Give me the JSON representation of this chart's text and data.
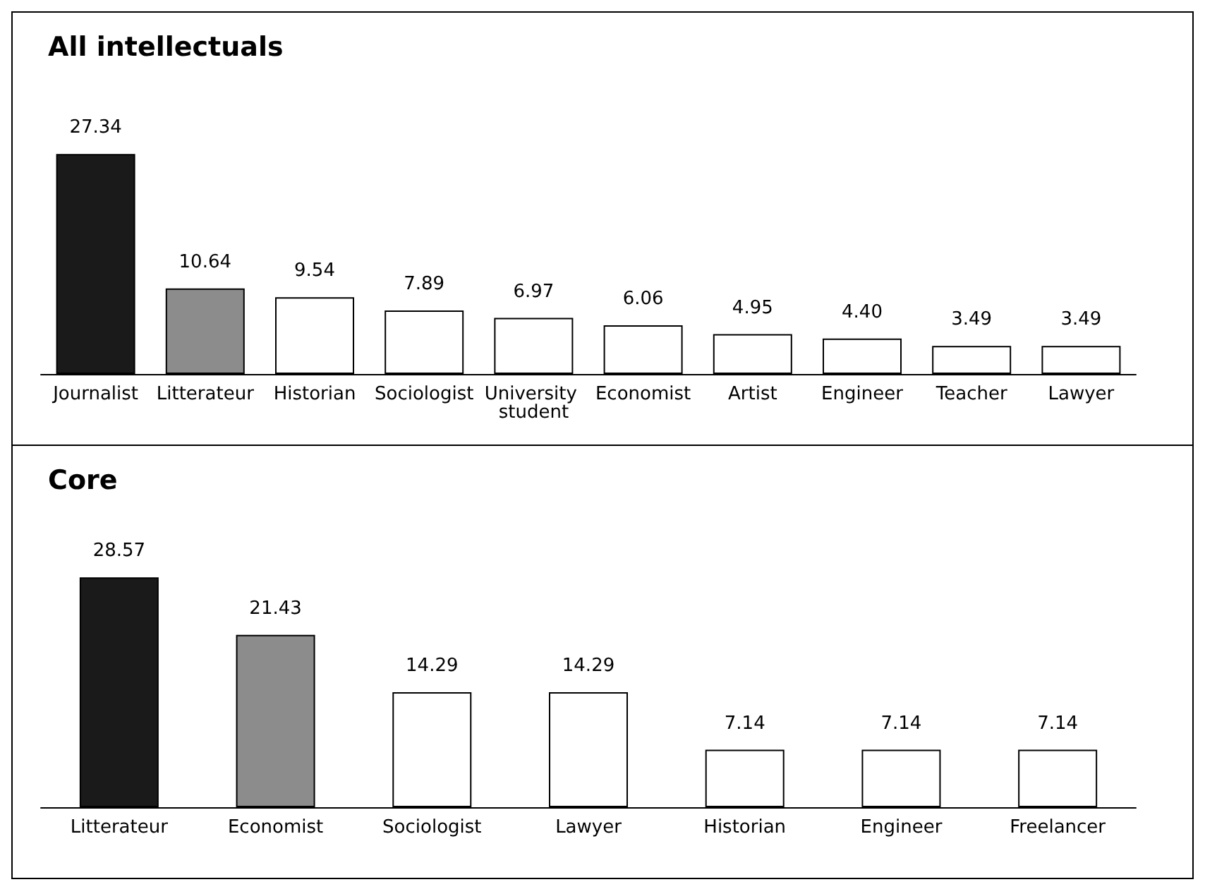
{
  "chart_data": [
    {
      "type": "bar",
      "title": "All intellectuals",
      "categories": [
        "Journalist",
        "Litterateur",
        "Historian",
        "Sociologist",
        "University student",
        "Economist",
        "Artist",
        "Engineer",
        "Teacher",
        "Lawyer"
      ],
      "values": [
        27.34,
        10.64,
        9.54,
        7.89,
        6.97,
        6.06,
        4.95,
        4.4,
        3.49,
        3.49
      ],
      "value_labels": [
        "27.34",
        "10.64",
        "9.54",
        "7.89",
        "6.97",
        "6.06",
        "4.95",
        "4.40",
        "3.49",
        "3.49"
      ],
      "colors": [
        "#1a1a1a",
        "#8c8c8c",
        "#ffffff",
        "#ffffff",
        "#ffffff",
        "#ffffff",
        "#ffffff",
        "#ffffff",
        "#ffffff",
        "#ffffff"
      ]
    },
    {
      "type": "bar",
      "title": "Core",
      "categories": [
        "Litterateur",
        "Economist",
        "Sociologist",
        "Lawyer",
        "Historian",
        "Engineer",
        "Freelancer"
      ],
      "values": [
        28.57,
        21.43,
        14.29,
        14.29,
        7.14,
        7.14,
        7.14
      ],
      "value_labels": [
        "28.57",
        "21.43",
        "14.29",
        "14.29",
        "7.14",
        "7.14",
        "7.14"
      ],
      "colors": [
        "#1a1a1a",
        "#8c8c8c",
        "#ffffff",
        "#ffffff",
        "#ffffff",
        "#ffffff",
        "#ffffff"
      ]
    }
  ]
}
